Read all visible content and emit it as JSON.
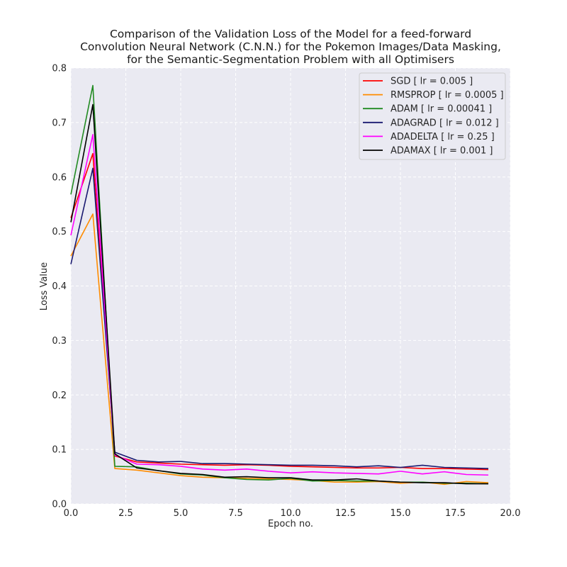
{
  "chart_data": {
    "type": "line",
    "title": [
      "Comparison of the Validation Loss of the Model for a feed-forward",
      "Convolution Neural Network (C.N.N.) for the Pokemon Images/Data Masking,",
      "for the Semantic-Segmentation Problem with all Optimisers"
    ],
    "xlabel": "Epoch no.",
    "ylabel": "Loss Value",
    "xlim": [
      0,
      20
    ],
    "ylim": [
      0,
      0.8
    ],
    "x_ticks": [
      "0.0",
      "2.5",
      "5.0",
      "7.5",
      "10.0",
      "12.5",
      "15.0",
      "17.5",
      "20.0"
    ],
    "y_ticks": [
      "0.0",
      "0.1",
      "0.2",
      "0.3",
      "0.4",
      "0.5",
      "0.6",
      "0.7",
      "0.8"
    ],
    "grid": true,
    "legend_position": "top-right",
    "x": [
      0,
      1,
      2,
      3,
      4,
      5,
      6,
      7,
      8,
      9,
      10,
      11,
      12,
      13,
      14,
      15,
      16,
      17,
      18,
      19
    ],
    "series": [
      {
        "name": "SGD [ lr = 0.005 ]",
        "color": "#ff0000",
        "values": [
          0.525,
          0.643,
          0.088,
          0.077,
          0.075,
          0.073,
          0.072,
          0.071,
          0.072,
          0.071,
          0.069,
          0.068,
          0.067,
          0.066,
          0.066,
          0.067,
          0.065,
          0.065,
          0.064,
          0.063
        ]
      },
      {
        "name": "RMSPROP [ lr = 0.0005 ]",
        "color": "#ff8c00",
        "values": [
          0.455,
          0.532,
          0.065,
          0.062,
          0.057,
          0.052,
          0.049,
          0.048,
          0.047,
          0.046,
          0.045,
          0.043,
          0.04,
          0.04,
          0.041,
          0.038,
          0.04,
          0.036,
          0.041,
          0.039
        ]
      },
      {
        "name": "ADAM [ lr = 0.00041 ]",
        "color": "#228b22",
        "values": [
          0.568,
          0.768,
          0.069,
          0.068,
          0.061,
          0.055,
          0.053,
          0.048,
          0.045,
          0.044,
          0.047,
          0.042,
          0.043,
          0.042,
          0.042,
          0.04,
          0.04,
          0.038,
          0.038,
          0.037
        ]
      },
      {
        "name": "ADAGRAD [ lr = 0.012 ]",
        "color": "#191970",
        "values": [
          0.44,
          0.616,
          0.095,
          0.08,
          0.077,
          0.078,
          0.074,
          0.074,
          0.073,
          0.072,
          0.071,
          0.071,
          0.07,
          0.068,
          0.07,
          0.067,
          0.071,
          0.067,
          0.066,
          0.065
        ]
      },
      {
        "name": "ADADELTA [ lr = 0.25 ]",
        "color": "#ff00ff",
        "values": [
          0.493,
          0.678,
          0.09,
          0.073,
          0.072,
          0.069,
          0.064,
          0.062,
          0.064,
          0.06,
          0.057,
          0.059,
          0.057,
          0.056,
          0.055,
          0.06,
          0.055,
          0.059,
          0.054,
          0.053
        ]
      },
      {
        "name": "ADAMAX [ lr = 0.001 ]",
        "color": "#000000",
        "values": [
          0.517,
          0.733,
          0.092,
          0.066,
          0.061,
          0.056,
          0.054,
          0.049,
          0.05,
          0.048,
          0.048,
          0.044,
          0.044,
          0.046,
          0.042,
          0.04,
          0.039,
          0.039,
          0.037,
          0.037
        ]
      }
    ]
  },
  "colors": {
    "plot_background": "#eaeaf2",
    "grid": "#ffffff",
    "page_background": "#ffffff"
  }
}
